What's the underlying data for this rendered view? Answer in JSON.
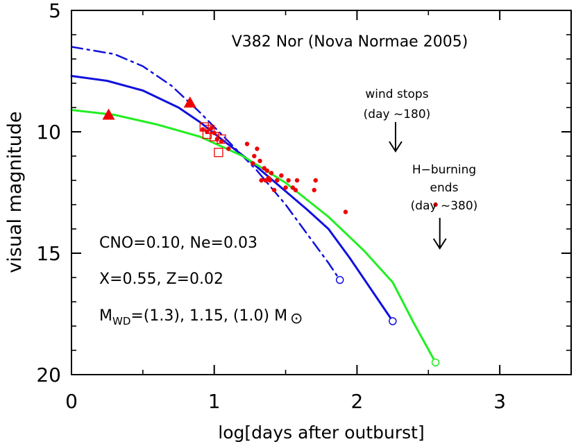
{
  "chart_data": {
    "type": "line",
    "title": "V382 Nor (Nova Normae 2005)",
    "xlabel": "log[days after outburst]",
    "ylabel": "visual magnitude",
    "xlim": [
      0,
      3.5
    ],
    "ylim": [
      20,
      5
    ],
    "y_inverted": true,
    "grid": false,
    "x_ticks": [
      0,
      1,
      2,
      3
    ],
    "x_tick_labels": [
      "0",
      "1",
      "2",
      "3"
    ],
    "y_ticks": [
      5,
      10,
      15,
      20
    ],
    "y_tick_labels": [
      "5",
      "10",
      "15",
      "20"
    ],
    "series": [
      {
        "style": "dash-dot",
        "color": "#1010dd",
        "x": [
          0,
          0.3,
          0.5,
          0.7,
          0.9,
          1.1,
          1.3,
          1.5,
          1.6,
          1.7,
          1.8,
          1.88
        ],
        "y": [
          6.5,
          6.8,
          7.3,
          8.1,
          9.2,
          10.4,
          11.6,
          13.0,
          13.8,
          14.6,
          15.4,
          16.1
        ],
        "end_marker": {
          "x": 1.88,
          "y": 16.1
        }
      },
      {
        "style": "solid",
        "color": "#1010dd",
        "x": [
          0,
          0.25,
          0.5,
          0.75,
          0.9,
          1.05,
          1.25,
          1.45,
          1.65,
          1.8,
          1.95,
          2.1,
          2.25
        ],
        "y": [
          7.7,
          7.9,
          8.3,
          9.0,
          9.6,
          10.3,
          11.2,
          12.2,
          13.2,
          14.0,
          15.2,
          16.5,
          17.8
        ],
        "end_marker": {
          "x": 2.25,
          "y": 17.8
        }
      },
      {
        "style": "solid",
        "color": "#22ee22",
        "x": [
          0,
          0.3,
          0.6,
          0.9,
          1.2,
          1.5,
          1.8,
          2.05,
          2.25,
          2.4,
          2.55
        ],
        "y": [
          9.1,
          9.3,
          9.7,
          10.2,
          11.0,
          12.1,
          13.5,
          14.9,
          16.2,
          17.9,
          19.5
        ],
        "end_marker": {
          "x": 2.55,
          "y": 19.5
        }
      }
    ],
    "observations": {
      "dots": {
        "color": "#ee0000",
        "x": [
          0.92,
          0.95,
          0.98,
          1.0,
          1.02,
          1.05,
          1.1,
          1.23,
          1.27,
          1.28,
          1.3,
          1.32,
          1.33,
          1.35,
          1.36,
          1.37,
          1.38,
          1.39,
          1.4,
          1.42,
          1.44,
          1.47,
          1.5,
          1.52,
          1.55,
          1.57,
          1.58,
          1.7,
          1.71,
          1.92,
          2.55
        ],
        "y": [
          9.9,
          10.0,
          9.85,
          10.05,
          10.3,
          10.4,
          10.7,
          10.5,
          11.3,
          11.0,
          10.7,
          11.2,
          12.0,
          11.5,
          12.0,
          11.6,
          11.9,
          12.0,
          11.7,
          12.4,
          12.0,
          11.8,
          12.3,
          12.0,
          12.3,
          12.4,
          12.0,
          12.4,
          12.0,
          13.3,
          13.0
        ]
      },
      "squares": {
        "color": "#ee0000",
        "x": [
          0.93,
          0.95,
          0.97,
          1.0,
          1.03,
          1.05
        ],
        "y": [
          9.8,
          10.1,
          9.9,
          10.2,
          10.85,
          10.3
        ]
      },
      "triangles": {
        "color": "#ee0000",
        "x": [
          0.26,
          0.83
        ],
        "y": [
          9.3,
          8.8
        ]
      }
    },
    "annotations": {
      "wind_line1": "wind stops",
      "wind_line2": "(day ~180)",
      "wind_arrow_x": 2.27,
      "hburn_line1": "H−burning",
      "hburn_line2": "ends",
      "hburn_line3": "(day ~380)",
      "hburn_arrow_x": 2.58,
      "param1": "CNO=0.10, Ne=0.03",
      "param2": "X=0.55, Z=0.02",
      "param3_prefix": "M",
      "param3_sub": "WD",
      "param3_mid": "=(1.3), 1.15, (1.0) M",
      "param3_sun_symbol": "⊙"
    }
  }
}
